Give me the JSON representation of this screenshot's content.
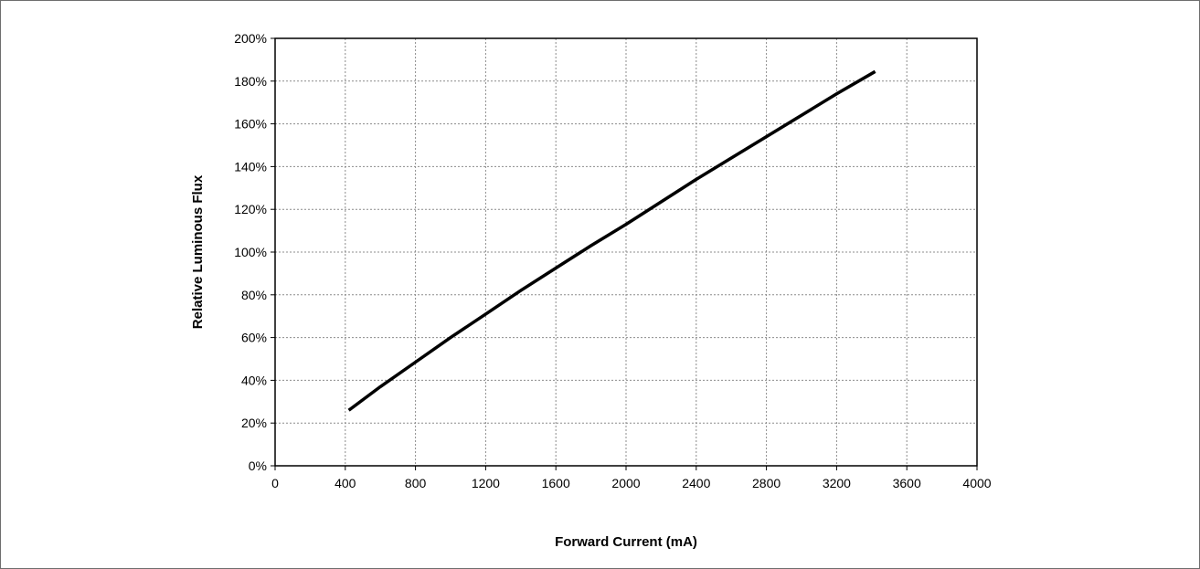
{
  "chart_data": {
    "type": "line",
    "title": "",
    "xlabel": "Forward Current (mA)",
    "ylabel": "Relative Luminous Flux",
    "xlim": [
      0,
      4000
    ],
    "ylim": [
      0,
      200
    ],
    "x_ticks": [
      "0",
      "400",
      "800",
      "1200",
      "1600",
      "2000",
      "2400",
      "2800",
      "3200",
      "3600",
      "4000"
    ],
    "y_ticks": [
      "0%",
      "20%",
      "40%",
      "60%",
      "80%",
      "100%",
      "120%",
      "140%",
      "160%",
      "180%",
      "200%"
    ],
    "grid": true,
    "legend": "none",
    "series": [
      {
        "color": "#000000",
        "x": [
          420,
          600,
          800,
          1000,
          1200,
          1400,
          1600,
          1800,
          2000,
          2200,
          2400,
          2600,
          2800,
          3000,
          3200,
          3420
        ],
        "y": [
          26,
          37,
          48.5,
          60,
          71,
          82,
          92.5,
          103,
          113,
          123.5,
          134,
          144,
          154,
          164,
          174,
          184.5
        ]
      }
    ]
  }
}
